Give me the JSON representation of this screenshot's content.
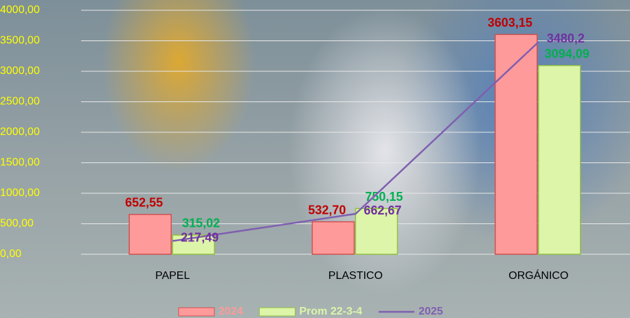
{
  "chart_data": {
    "type": "bar-line",
    "categories": [
      "PAPEL",
      "PLASTICO",
      "ORGÁNICO"
    ],
    "series": [
      {
        "name": "2024",
        "type": "bar",
        "color": "#ff9a9a",
        "label_color": "#c00000",
        "values": [
          652.55,
          532.7,
          3603.15
        ],
        "value_labels": [
          "652,55",
          "532,70",
          "3603,15"
        ]
      },
      {
        "name": "Prom 22-3-4",
        "type": "bar",
        "color": "#ddf5a8",
        "label_color": "#00b050",
        "values": [
          315.02,
          750.15,
          3094.09
        ],
        "value_labels": [
          "315,02",
          "750,15",
          "3094,09"
        ]
      },
      {
        "name": "2025",
        "type": "line",
        "color": "#7f5fb0",
        "label_color": "#7030a0",
        "values": [
          217.49,
          662.67,
          3480.2
        ],
        "value_labels": [
          "217,49",
          "662,67",
          "3480,2"
        ]
      }
    ],
    "ylim": [
      0,
      4000
    ],
    "yticks": [
      {
        "value": 0,
        "label": "0,00"
      },
      {
        "value": 500,
        "label": "500,00"
      },
      {
        "value": 1000,
        "label": "1000,00"
      },
      {
        "value": 1500,
        "label": "1500,00"
      },
      {
        "value": 2000,
        "label": "2000,00"
      },
      {
        "value": 2500,
        "label": "2500,00"
      },
      {
        "value": 3000,
        "label": "3000,00"
      },
      {
        "value": 3500,
        "label": "3500,00"
      },
      {
        "value": 4000,
        "label": "4000,00"
      }
    ],
    "grid": true,
    "legend": "bottom"
  }
}
